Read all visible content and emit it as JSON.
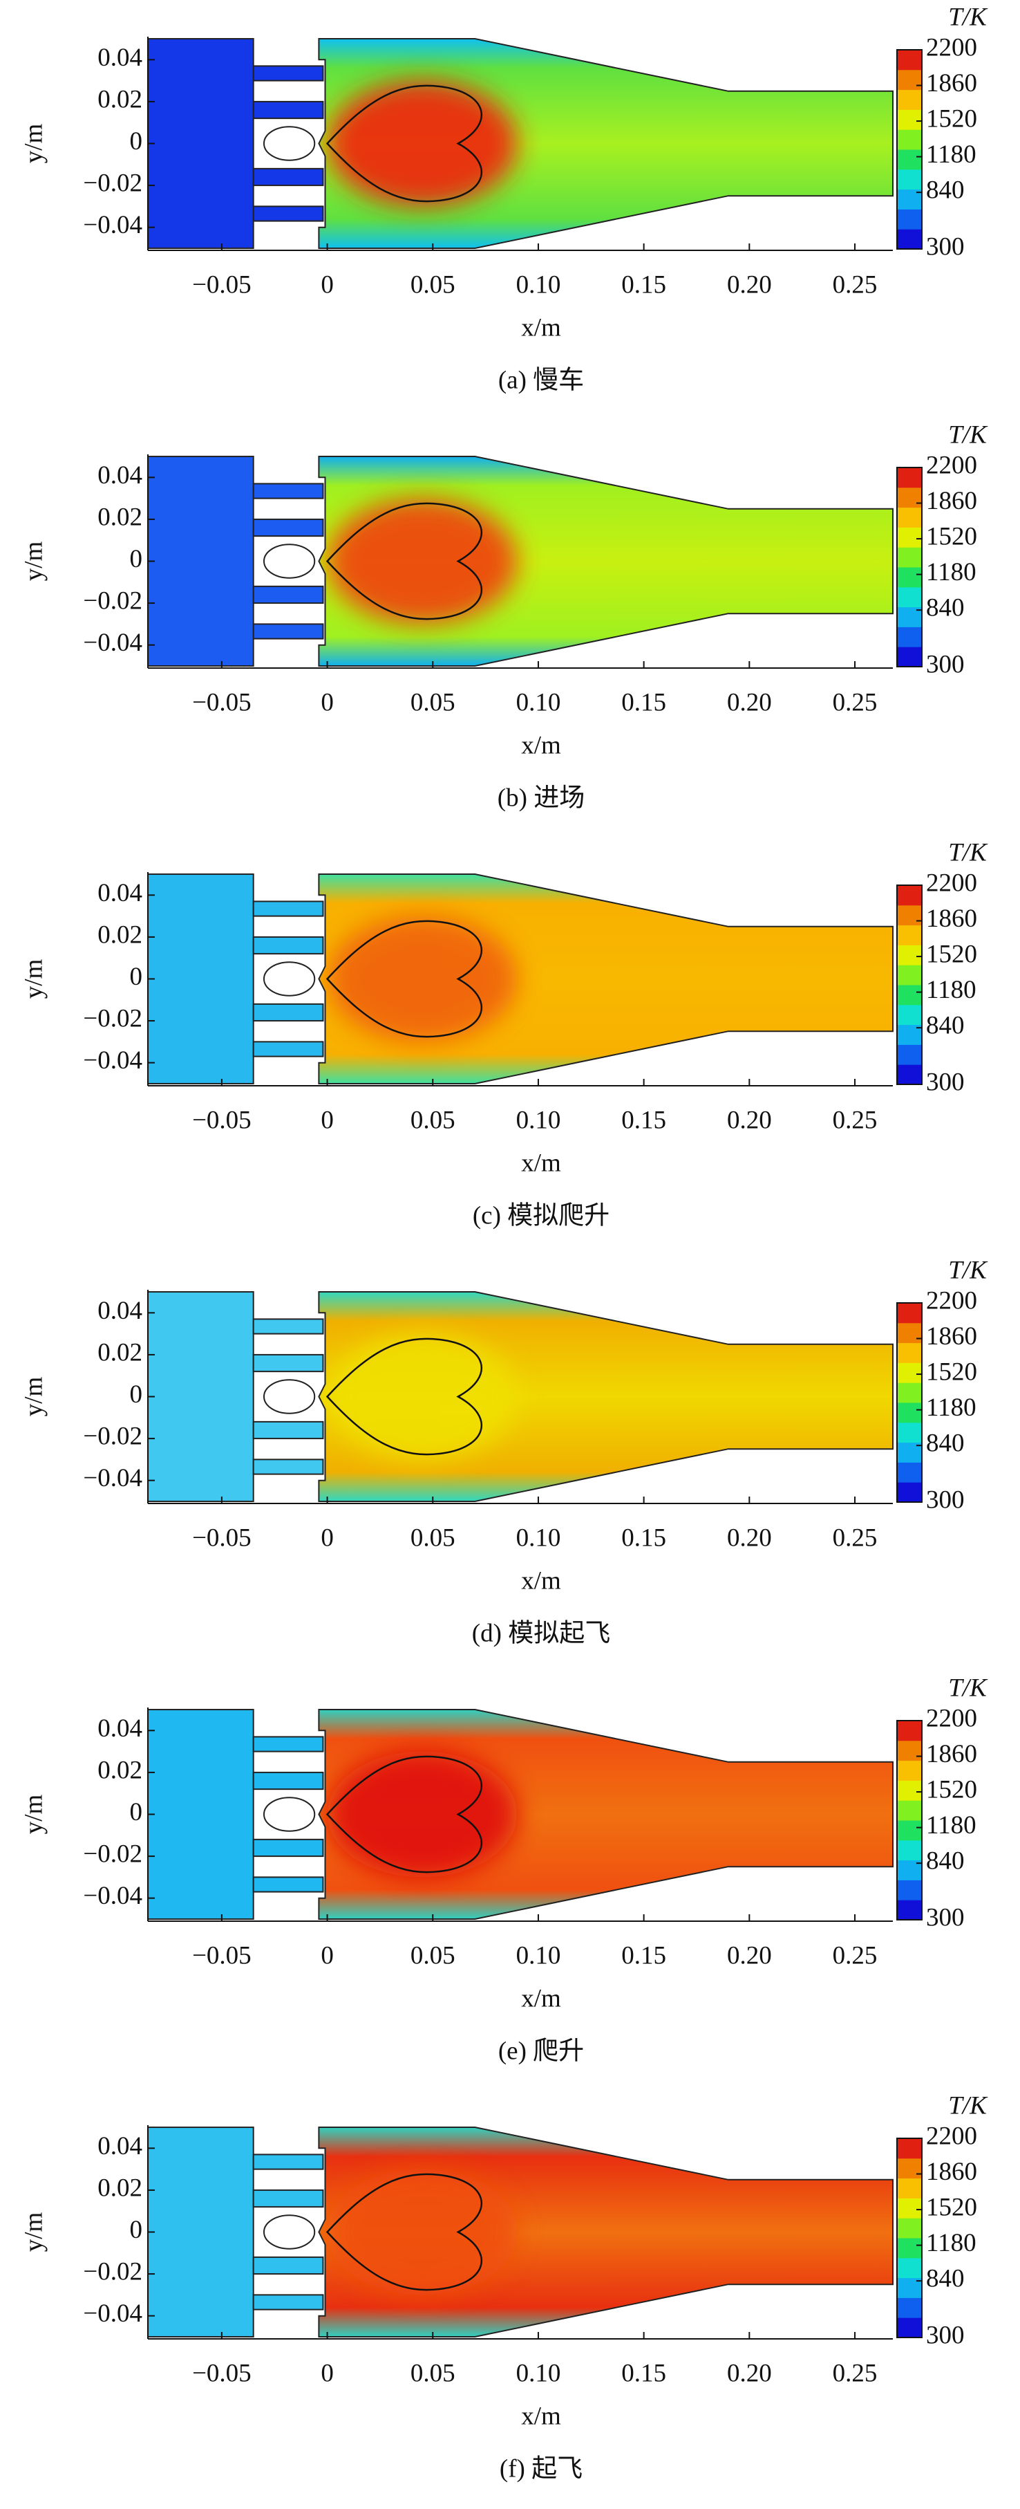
{
  "chart_data": [
    {
      "type": "contour",
      "caption": "(a) 慢车",
      "xlabel": "x/m",
      "ylabel": "y/m",
      "colorbar_title": "T/K",
      "xlim": [
        -0.085,
        0.268
      ],
      "ylim": [
        -0.051,
        0.051
      ],
      "xticks": [
        {
          "value": -0.05,
          "label": "−0.05"
        },
        0,
        0.05,
        {
          "value": 0.1,
          "label": "0.10"
        },
        0.15,
        {
          "value": 0.2,
          "label": "0.20"
        },
        0.25
      ],
      "yticks": [
        {
          "value": -0.04,
          "label": "−0.04"
        },
        {
          "value": -0.02,
          "label": "−0.02"
        },
        0,
        0.02,
        0.04
      ],
      "clim": [
        300,
        2200
      ],
      "cticks": [
        300,
        840,
        1180,
        1520,
        1860,
        2200
      ],
      "colorscale": [
        "#1010d8",
        "#1060f0",
        "#10b0f0",
        "#10e0d0",
        "#20e060",
        "#80f020",
        "#e0f000",
        "#f8c000",
        "#f08000",
        "#e02010"
      ]
    },
    {
      "type": "contour",
      "caption": "(b) 进场",
      "xlabel": "x/m",
      "ylabel": "y/m",
      "colorbar_title": "T/K",
      "xlim": [
        -0.085,
        0.268
      ],
      "ylim": [
        -0.051,
        0.051
      ],
      "xticks": [
        {
          "value": -0.05,
          "label": "−0.05"
        },
        0,
        0.05,
        {
          "value": 0.1,
          "label": "0.10"
        },
        0.15,
        {
          "value": 0.2,
          "label": "0.20"
        },
        0.25
      ],
      "yticks": [
        {
          "value": -0.04,
          "label": "−0.04"
        },
        {
          "value": -0.02,
          "label": "−0.02"
        },
        0,
        0.02,
        0.04
      ],
      "clim": [
        300,
        2200
      ],
      "cticks": [
        300,
        840,
        1180,
        1520,
        1860,
        2200
      ],
      "colorscale": [
        "#1010d8",
        "#1060f0",
        "#10b0f0",
        "#10e0d0",
        "#20e060",
        "#80f020",
        "#e0f000",
        "#f8c000",
        "#f08000",
        "#e02010"
      ]
    },
    {
      "type": "contour",
      "caption": "(c) 模拟爬升",
      "xlabel": "x/m",
      "ylabel": "y/m",
      "colorbar_title": "T/K",
      "xlim": [
        -0.085,
        0.268
      ],
      "ylim": [
        -0.051,
        0.051
      ],
      "xticks": [
        {
          "value": -0.05,
          "label": "−0.05"
        },
        0,
        0.05,
        {
          "value": 0.1,
          "label": "0.10"
        },
        0.15,
        {
          "value": 0.2,
          "label": "0.20"
        },
        0.25
      ],
      "yticks": [
        {
          "value": -0.04,
          "label": "−0.04"
        },
        {
          "value": -0.02,
          "label": "−0.02"
        },
        0,
        0.02,
        0.04
      ],
      "clim": [
        300,
        2200
      ],
      "cticks": [
        300,
        840,
        1180,
        1520,
        1860,
        2200
      ],
      "colorscale": [
        "#1010d8",
        "#1060f0",
        "#10b0f0",
        "#10e0d0",
        "#20e060",
        "#80f020",
        "#e0f000",
        "#f8c000",
        "#f08000",
        "#e02010"
      ]
    },
    {
      "type": "contour",
      "caption": "(d) 模拟起飞",
      "xlabel": "x/m",
      "ylabel": "y/m",
      "colorbar_title": "T/K",
      "xlim": [
        -0.085,
        0.268
      ],
      "ylim": [
        -0.051,
        0.051
      ],
      "xticks": [
        {
          "value": -0.05,
          "label": "−0.05"
        },
        0,
        0.05,
        {
          "value": 0.1,
          "label": "0.10"
        },
        0.15,
        {
          "value": 0.2,
          "label": "0.20"
        },
        0.25
      ],
      "yticks": [
        {
          "value": -0.04,
          "label": "−0.04"
        },
        {
          "value": -0.02,
          "label": "−0.02"
        },
        0,
        0.02,
        0.04
      ],
      "clim": [
        300,
        2200
      ],
      "cticks": [
        300,
        840,
        1180,
        1520,
        1860,
        2200
      ],
      "colorscale": [
        "#1010d8",
        "#1060f0",
        "#10b0f0",
        "#10e0d0",
        "#20e060",
        "#80f020",
        "#e0f000",
        "#f8c000",
        "#f08000",
        "#e02010"
      ]
    },
    {
      "type": "contour",
      "caption": "(e) 爬升",
      "xlabel": "x/m",
      "ylabel": "y/m",
      "colorbar_title": "T/K",
      "xlim": [
        -0.085,
        0.268
      ],
      "ylim": [
        -0.051,
        0.051
      ],
      "xticks": [
        {
          "value": -0.05,
          "label": "−0.05"
        },
        0,
        0.05,
        {
          "value": 0.1,
          "label": "0.10"
        },
        0.15,
        {
          "value": 0.2,
          "label": "0.20"
        },
        0.25
      ],
      "yticks": [
        {
          "value": -0.04,
          "label": "−0.04"
        },
        {
          "value": -0.02,
          "label": "−0.02"
        },
        0,
        0.02,
        0.04
      ],
      "clim": [
        300,
        2200
      ],
      "cticks": [
        300,
        840,
        1180,
        1520,
        1860,
        2200
      ],
      "colorscale": [
        "#1010d8",
        "#1060f0",
        "#10b0f0",
        "#10e0d0",
        "#20e060",
        "#80f020",
        "#e0f000",
        "#f8c000",
        "#f08000",
        "#e02010"
      ]
    },
    {
      "type": "contour",
      "caption": "(f) 起飞",
      "xlabel": "x/m",
      "ylabel": "y/m",
      "colorbar_title": "T/K",
      "xlim": [
        -0.085,
        0.268
      ],
      "ylim": [
        -0.051,
        0.051
      ],
      "xticks": [
        {
          "value": -0.05,
          "label": "−0.05"
        },
        0,
        0.05,
        {
          "value": 0.1,
          "label": "0.10"
        },
        0.15,
        {
          "value": 0.2,
          "label": "0.20"
        },
        0.25
      ],
      "yticks": [
        {
          "value": -0.04,
          "label": "−0.04"
        },
        {
          "value": -0.02,
          "label": "−0.02"
        },
        0,
        0.02,
        0.04
      ],
      "clim": [
        300,
        2200
      ],
      "cticks": [
        300,
        840,
        1180,
        1520,
        1860,
        2200
      ],
      "colorscale": [
        "#1010d8",
        "#1060f0",
        "#10b0f0",
        "#10e0d0",
        "#20e060",
        "#80f020",
        "#e0f000",
        "#f8c000",
        "#f08000",
        "#e02010"
      ]
    }
  ]
}
